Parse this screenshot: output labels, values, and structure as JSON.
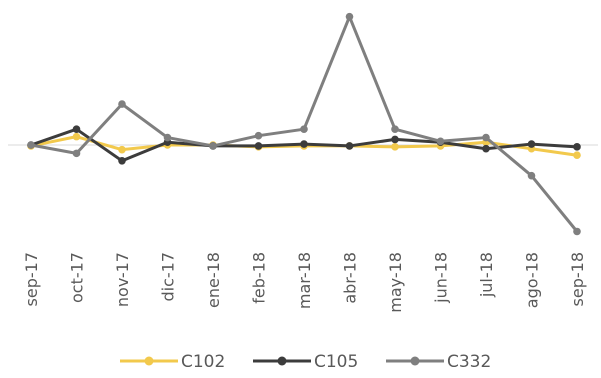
{
  "chart_data": {
    "type": "line",
    "categories": [
      "sep-17",
      "oct-17",
      "nov-17",
      "dic-17",
      "ene-18",
      "feb-18",
      "mar-18",
      "abr-18",
      "may-18",
      "jun-18",
      "jul-18",
      "ago-18",
      "sep-18"
    ],
    "series": [
      {
        "name": "C102",
        "color": "#F2C94C",
        "values": [
          -0.01,
          0.09,
          -0.05,
          0.0,
          0.0,
          -0.02,
          -0.01,
          -0.01,
          -0.02,
          -0.01,
          0.03,
          -0.04,
          -0.11
        ]
      },
      {
        "name": "C105",
        "color": "#3C3C3C",
        "values": [
          0.0,
          0.17,
          -0.17,
          0.03,
          -0.01,
          -0.01,
          0.01,
          -0.01,
          0.06,
          0.03,
          -0.04,
          0.01,
          -0.02
        ]
      },
      {
        "name": "C332",
        "color": "#7F7F7F",
        "values": [
          0.0,
          -0.09,
          0.44,
          0.08,
          -0.01,
          0.1,
          0.17,
          1.38,
          0.17,
          0.04,
          0.08,
          -0.33,
          -0.93
        ]
      }
    ],
    "ylim": [
      -1.0,
      1.5
    ],
    "title": "",
    "xlabel": "",
    "ylabel": "",
    "grid": false,
    "legend_position": "bottom"
  }
}
